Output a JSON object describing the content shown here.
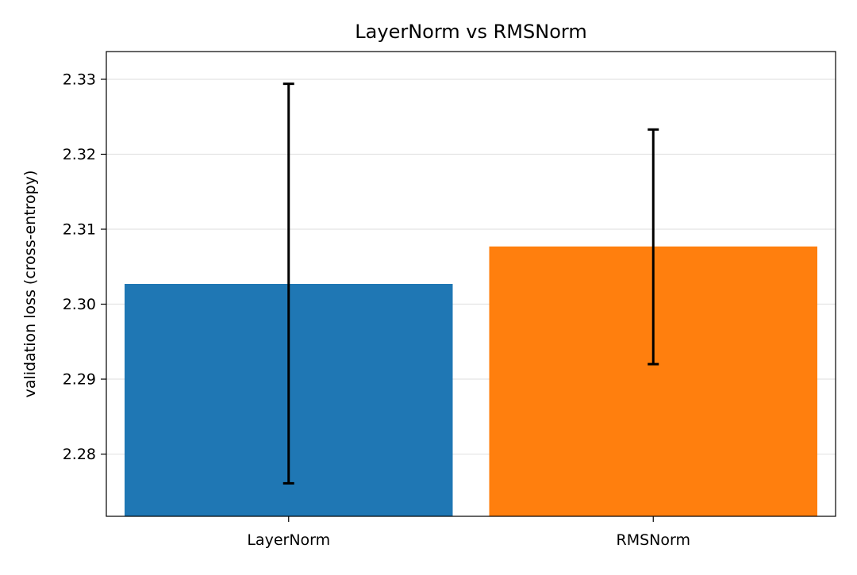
{
  "chart_data": {
    "type": "bar",
    "title": "LayerNorm vs RMSNorm",
    "xlabel": "",
    "ylabel": "validation loss (cross-entropy)",
    "categories": [
      "LayerNorm",
      "RMSNorm"
    ],
    "values": [
      2.3027,
      2.3077
    ],
    "error_bars": [
      {
        "low": 2.2761,
        "high": 2.3294
      },
      {
        "low": 2.292,
        "high": 2.3233
      }
    ],
    "colors": [
      "#1f77b4",
      "#ff7f0e"
    ],
    "ylim": [
      2.2717,
      2.3337
    ],
    "yticks": [
      "2.28",
      "2.29",
      "2.30",
      "2.31",
      "2.32",
      "2.33"
    ],
    "grid": "horizontal",
    "legend": "none"
  }
}
